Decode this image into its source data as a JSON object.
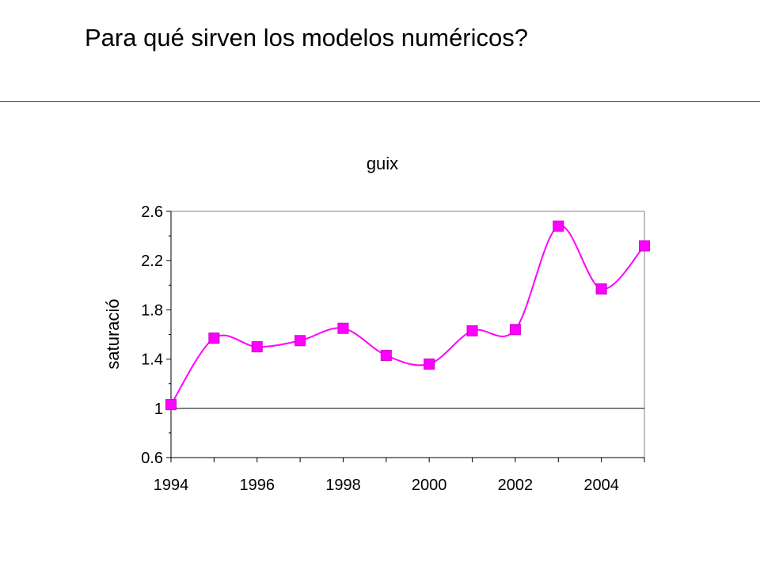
{
  "slide": {
    "title": "Para qué sirven los modelos numéricos?"
  },
  "chart_data": {
    "type": "line",
    "title": "guix",
    "xlabel": "",
    "ylabel": "saturació",
    "x": [
      1994,
      1995,
      1996,
      1997,
      1998,
      1999,
      2000,
      2001,
      2002,
      2003,
      2004,
      2005
    ],
    "series": [
      {
        "values": [
          1.03,
          1.57,
          1.5,
          1.55,
          1.65,
          1.43,
          1.36,
          1.63,
          1.64,
          2.48,
          1.97,
          2.32
        ],
        "color": "#ff00ff",
        "marker": "square",
        "smooth": true
      }
    ],
    "xlim": [
      1994,
      2005
    ],
    "ylim": [
      0.6,
      2.6
    ],
    "xticks": [
      1994,
      1996,
      1998,
      2000,
      2002,
      2004
    ],
    "xtick_labels": [
      "1994",
      "1996",
      "1998",
      "2000",
      "2002",
      "2004"
    ],
    "yticks": [
      0.6,
      1,
      1.4,
      1.8,
      2.2,
      2.6
    ],
    "ytick_labels": [
      "0.6",
      "1",
      "1.4",
      "1.8",
      "2.2",
      "2.6"
    ],
    "reference_line_y": 1,
    "grid": false,
    "legend": "none"
  }
}
